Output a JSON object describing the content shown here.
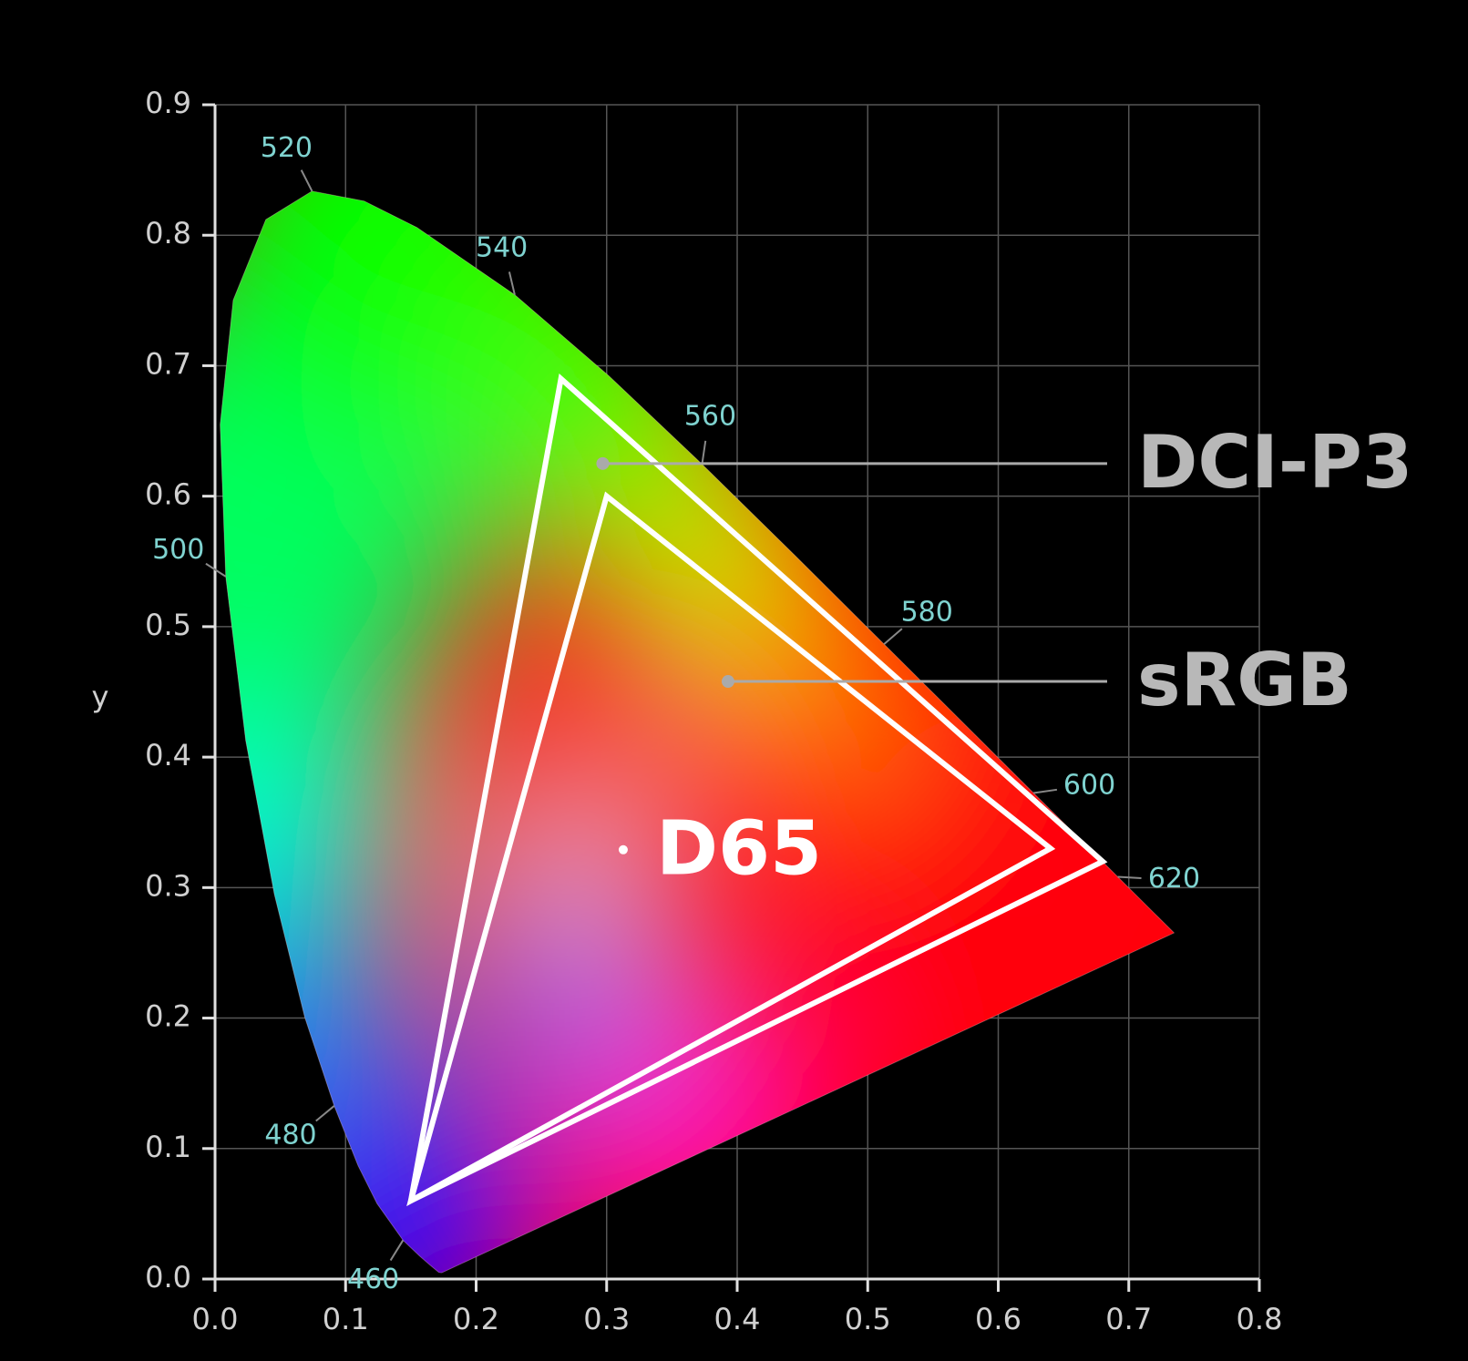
{
  "chart_data": {
    "type": "chromaticity",
    "y_label": "y",
    "xlim": [
      0,
      0.8
    ],
    "ylim": [
      0,
      0.9
    ],
    "xticks": [
      {
        "value": 0,
        "label": "0.0"
      },
      0.1,
      0.2,
      0.3,
      0.4,
      0.5,
      0.6,
      0.7,
      0.8
    ],
    "yticks": [
      {
        "value": 0,
        "label": "0.0"
      },
      0.1,
      0.2,
      0.3,
      0.4,
      0.5,
      0.6,
      0.7,
      0.8,
      0.9
    ],
    "grid": true,
    "spectral_locus": {
      "x": [
        0.1741,
        0.1733,
        0.1714,
        0.1644,
        0.1566,
        0.144,
        0.1241,
        0.1096,
        0.0913,
        0.0687,
        0.0454,
        0.0235,
        0.0082,
        0.0039,
        0.0139,
        0.0389,
        0.0743,
        0.1142,
        0.1547,
        0.2296,
        0.3016,
        0.3731,
        0.4441,
        0.5125,
        0.5752,
        0.627,
        0.6658,
        0.6915,
        0.719,
        0.73,
        0.7347
      ],
      "y": [
        0.005,
        0.0048,
        0.0051,
        0.0109,
        0.0177,
        0.0297,
        0.0578,
        0.0868,
        0.1327,
        0.2007,
        0.295,
        0.4127,
        0.5384,
        0.6548,
        0.7502,
        0.812,
        0.8338,
        0.8262,
        0.8059,
        0.7543,
        0.6923,
        0.6245,
        0.5547,
        0.4866,
        0.4242,
        0.3725,
        0.334,
        0.3083,
        0.2809,
        0.27,
        0.2653
      ]
    },
    "wavelength_marks": [
      {
        "nm": 460,
        "x": 0.144,
        "y": 0.0297
      },
      {
        "nm": 480,
        "x": 0.0913,
        "y": 0.1327
      },
      {
        "nm": 500,
        "x": 0.0082,
        "y": 0.5384
      },
      {
        "nm": 520,
        "x": 0.0743,
        "y": 0.8338
      },
      {
        "nm": 540,
        "x": 0.2296,
        "y": 0.7543
      },
      {
        "nm": 560,
        "x": 0.3731,
        "y": 0.6245
      },
      {
        "nm": 580,
        "x": 0.5125,
        "y": 0.4866
      },
      {
        "nm": 600,
        "x": 0.627,
        "y": 0.3725
      },
      {
        "nm": 620,
        "x": 0.6915,
        "y": 0.3083
      }
    ],
    "series": [
      {
        "name": "DCI-P3",
        "color": "#ffffff",
        "x": [
          0.68,
          0.265,
          0.15
        ],
        "y": [
          0.32,
          0.69,
          0.06
        ]
      },
      {
        "name": "sRGB",
        "color": "#ffffff",
        "x": [
          0.64,
          0.3,
          0.15
        ],
        "y": [
          0.33,
          0.6,
          0.06
        ]
      }
    ],
    "white_point": {
      "label": "D65",
      "x": 0.3127,
      "y": 0.329
    }
  }
}
